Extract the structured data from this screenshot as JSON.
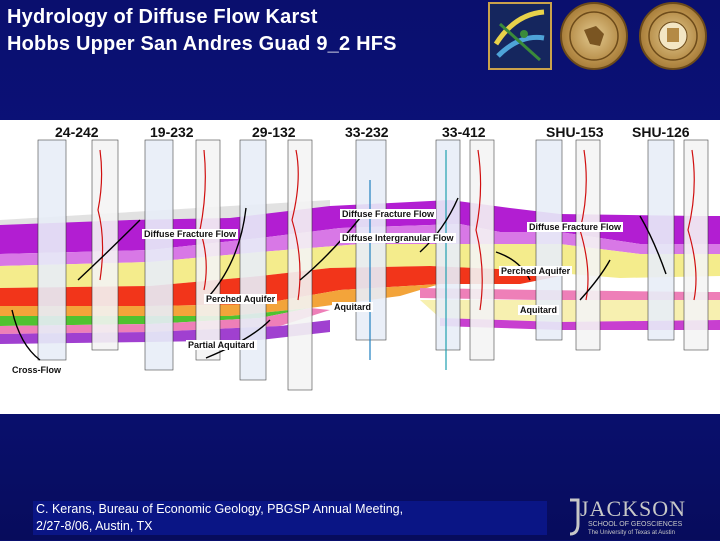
{
  "title": {
    "line1": "Hydrology of Diffuse Flow Karst",
    "line2": "Hobbs Upper San Andres Guad 9_2 HFS"
  },
  "wells": [
    "24-242",
    "19-232",
    "29-132",
    "33-232",
    "33-412",
    "SHU-153",
    "SHU-126"
  ],
  "labels": {
    "diffuse_fracture_flow_left": "Diffuse Fracture Flow",
    "diffuse_fracture_flow_center": "Diffuse Fracture Flow",
    "diffuse_intergranular_flow": "Diffuse Intergranular Flow",
    "diffuse_fracture_flow_right": "Diffuse Fracture Flow",
    "perched_aquifer_left": "Perched Aquifer",
    "perched_aquifer_right": "Perched Aquifer",
    "aquitard_center": "Aquitard",
    "aquitard_right": "Aquitard",
    "partial_aquitard": "Partial Aquitard",
    "cross_flow": "Cross-Flow"
  },
  "footer": {
    "line1": "C. Kerans, Bureau of Economic Geology, PBGSP Annual Meeting,",
    "line2": "2/27-8/06, Austin, TX"
  },
  "logo_text": {
    "jackson_main": "JACKSON",
    "jackson_sub": "SCHOOL OF GEOSCIENCES",
    "jackson_sub2": "The University of Texas at Austin"
  }
}
